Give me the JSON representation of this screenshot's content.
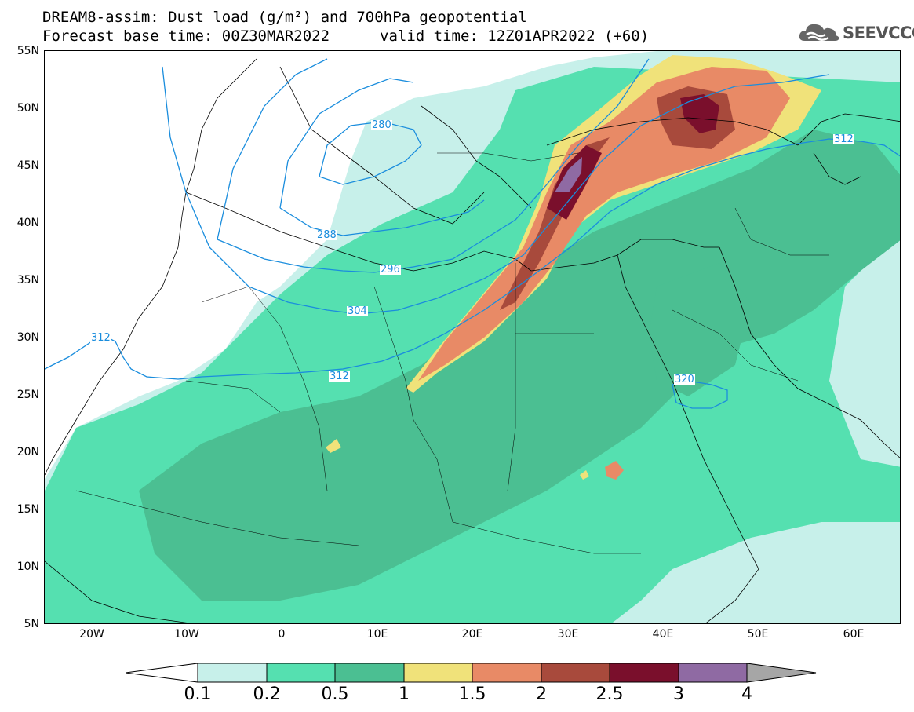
{
  "header": {
    "title": "DREAM8-assim: Dust load (g/m²) and 700hPa geopotential",
    "base_time": "Forecast base time: 00Z30MAR2022",
    "valid_time": "valid time: 12Z01APR2022 (+60)"
  },
  "logo": {
    "text": "SEEVCCC",
    "icon": "cloud-icon"
  },
  "axes": {
    "lat_labels": [
      "55N",
      "50N",
      "45N",
      "40N",
      "35N",
      "30N",
      "25N",
      "20N",
      "15N",
      "10N",
      "5N"
    ],
    "lon_labels": [
      "20W",
      "10W",
      "0",
      "10E",
      "20E",
      "30E",
      "40E",
      "50E",
      "60E"
    ]
  },
  "contours": {
    "color": "#1a8ddd",
    "labels": [
      "280",
      "288",
      "296",
      "304",
      "312",
      "312",
      "312",
      "320"
    ]
  },
  "colorbar": {
    "ticks": [
      "0.1",
      "0.2",
      "0.5",
      "1",
      "1.5",
      "2",
      "2.5",
      "3",
      "4"
    ],
    "colors": [
      "#c7f0ea",
      "#55e0b0",
      "#4bbf92",
      "#f0e27a",
      "#e88a66",
      "#a84a3c",
      "#7a0f2c",
      "#8f6aa3",
      "#a6a6a6"
    ]
  },
  "dust_levels": {
    "l01": "#c7f0ea",
    "l02": "#55e0b0",
    "l05": "#4bbf92",
    "l10": "#f0e27a",
    "l15": "#e88a66",
    "l20": "#a84a3c",
    "l25": "#7a0f2c",
    "l30": "#8f6aa3"
  }
}
